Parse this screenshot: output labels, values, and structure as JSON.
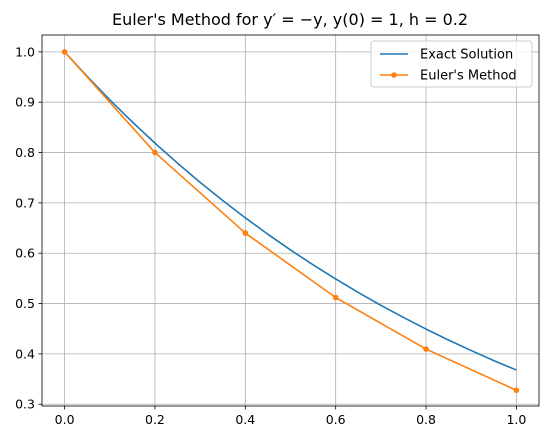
{
  "chart_data": {
    "type": "line",
    "title": "Euler's Method for y′ = −y, y(0) = 1, h = 0.2",
    "xlabel": "",
    "ylabel": "",
    "xlim": [
      -0.05,
      1.05
    ],
    "ylim": [
      0.2965,
      1.0335
    ],
    "xticks": [
      0.0,
      0.2,
      0.4,
      0.6,
      0.8,
      1.0
    ],
    "xtick_labels": [
      "0.0",
      "0.2",
      "0.4",
      "0.6",
      "0.8",
      "1.0"
    ],
    "yticks": [
      0.3,
      0.4,
      0.5,
      0.6,
      0.7,
      0.8,
      0.9,
      1.0
    ],
    "ytick_labels": [
      "0.3",
      "0.4",
      "0.5",
      "0.6",
      "0.7",
      "0.8",
      "0.9",
      "1.0"
    ],
    "grid": true,
    "legend_position": "top-right",
    "series": [
      {
        "name": "Exact Solution",
        "color": "#1f77b4",
        "markers": false,
        "x": [
          0.0,
          0.05,
          0.1,
          0.15,
          0.2,
          0.25,
          0.3,
          0.35,
          0.4,
          0.45,
          0.5,
          0.55,
          0.6,
          0.65,
          0.7,
          0.75,
          0.8,
          0.85,
          0.9,
          0.95,
          1.0
        ],
        "y": [
          1.0,
          0.9512,
          0.9048,
          0.8607,
          0.8187,
          0.7788,
          0.7408,
          0.7047,
          0.6703,
          0.6376,
          0.6065,
          0.5769,
          0.5488,
          0.522,
          0.4966,
          0.4724,
          0.4493,
          0.4274,
          0.4066,
          0.3867,
          0.3679
        ]
      },
      {
        "name": "Euler's Method",
        "color": "#ff7f0e",
        "markers": true,
        "x": [
          0.0,
          0.2,
          0.4,
          0.6,
          0.8,
          1.0
        ],
        "y": [
          1.0,
          0.8,
          0.64,
          0.512,
          0.4096,
          0.3277
        ]
      }
    ]
  }
}
